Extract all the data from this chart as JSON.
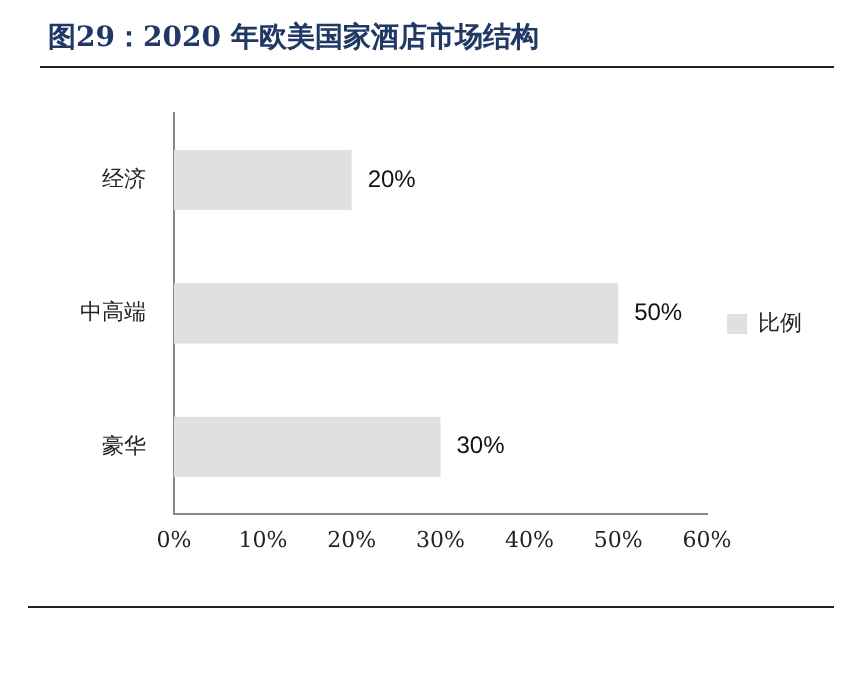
{
  "chart_data": {
    "type": "bar",
    "orientation": "horizontal",
    "title": "图29：2020 年欧美国家酒店市场结构",
    "categories": [
      "经济",
      "中高端",
      "豪华"
    ],
    "series": [
      {
        "name": "比例",
        "color": "#e0e0e0",
        "values": [
          20,
          50,
          30
        ],
        "value_labels": [
          "20%",
          "50%",
          "30%"
        ]
      }
    ],
    "xlim": [
      0,
      60
    ],
    "xticks": [
      {
        "value": 0,
        "label": "0%"
      },
      {
        "value": 10,
        "label": "10%"
      },
      {
        "value": 20,
        "label": "20%"
      },
      {
        "value": 30,
        "label": "30%"
      },
      {
        "value": 40,
        "label": "40%"
      },
      {
        "value": 50,
        "label": "50%"
      },
      {
        "value": 60,
        "label": "60%"
      }
    ],
    "grid": false,
    "legend": "right"
  }
}
